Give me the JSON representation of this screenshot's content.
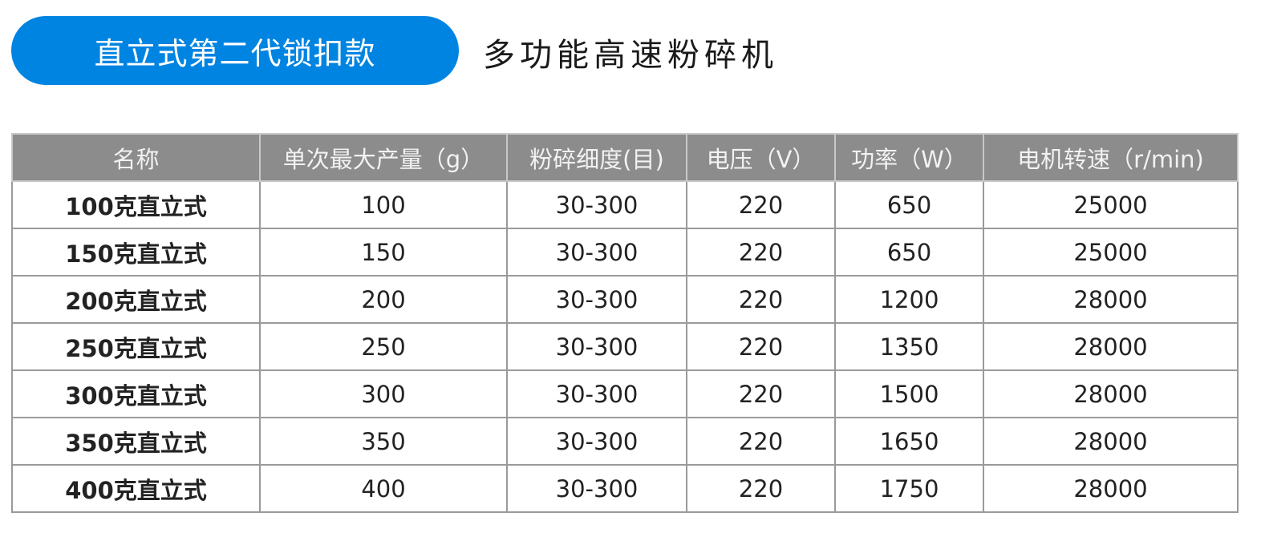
{
  "badge": "直立式第二代锁扣款",
  "title": "多功能高速粉碎机",
  "colors": {
    "badge_bg": "#0084e2",
    "header_bg": "#8c8c8c"
  },
  "table": {
    "headers": [
      "名称",
      "单次最大产量（g）",
      "粉碎细度(目)",
      "电压（V）",
      "功率（W）",
      "电机转速（r/min)"
    ],
    "rows": [
      [
        "100克直立式",
        "100",
        "30-300",
        "220",
        "650",
        "25000"
      ],
      [
        "150克直立式",
        "150",
        "30-300",
        "220",
        "650",
        "25000"
      ],
      [
        "200克直立式",
        "200",
        "30-300",
        "220",
        "1200",
        "28000"
      ],
      [
        "250克直立式",
        "250",
        "30-300",
        "220",
        "1350",
        "28000"
      ],
      [
        "300克直立式",
        "300",
        "30-300",
        "220",
        "1500",
        "28000"
      ],
      [
        "350克直立式",
        "350",
        "30-300",
        "220",
        "1650",
        "28000"
      ],
      [
        "400克直立式",
        "400",
        "30-300",
        "220",
        "1750",
        "28000"
      ]
    ]
  }
}
